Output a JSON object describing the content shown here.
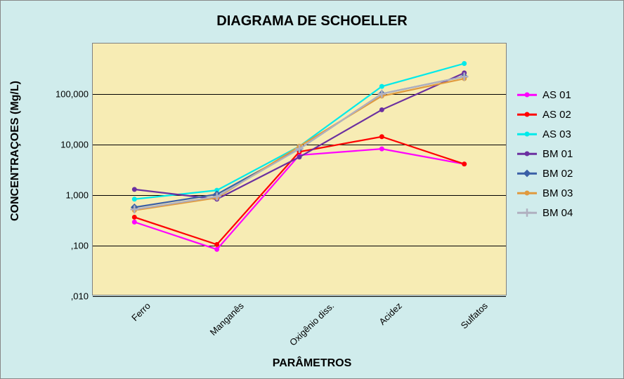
{
  "title": "DIAGRAMA DE SCHOELLER",
  "ylabel": "CONCENTRAÇOES (Mg/L)",
  "xlabel": "PARÂMETROS",
  "outer_bg": "#d0ecec",
  "plot_bg": "#f7ecb4",
  "plot_border": "#808080",
  "grid_color": "#000000",
  "chart": {
    "type": "line",
    "yscale": "log",
    "ylim_log10": [
      -2,
      3
    ],
    "yticks": [
      {
        "value": 0.01,
        "label": ",010"
      },
      {
        "value": 0.1,
        "label": ",100"
      },
      {
        "value": 1,
        "label": "1,000"
      },
      {
        "value": 10,
        "label": "10,000"
      },
      {
        "value": 100,
        "label": "100,000"
      }
    ],
    "categories": [
      "Ferro",
      "Manganês",
      "Oxigênio diss.",
      "Acidez",
      "Sulfatos"
    ],
    "series": [
      {
        "name": "AS 01",
        "color": "#ff00ff",
        "marker": "circle",
        "values": [
          0.28,
          0.08,
          6.0,
          8.0,
          4.0
        ]
      },
      {
        "name": "AS 02",
        "color": "#ff0000",
        "marker": "circle",
        "values": [
          0.35,
          0.1,
          7.0,
          14.0,
          4.0
        ]
      },
      {
        "name": "AS 03",
        "color": "#00eaea",
        "marker": "circle",
        "values": [
          0.8,
          1.2,
          9.0,
          140.0,
          400.0
        ]
      },
      {
        "name": "BM 01",
        "color": "#6b2fa0",
        "marker": "circle",
        "values": [
          1.25,
          0.8,
          5.5,
          48.0,
          260.0
        ]
      },
      {
        "name": "BM 02",
        "color": "#3a5fa6",
        "marker": "diamond",
        "values": [
          0.55,
          1.0,
          8.0,
          100.0,
          220.0
        ]
      },
      {
        "name": "BM 03",
        "color": "#e09a3e",
        "marker": "circle",
        "values": [
          0.48,
          0.85,
          9.0,
          90.0,
          200.0
        ]
      },
      {
        "name": "BM 04",
        "color": "#b0b0c0",
        "marker": "plus",
        "values": [
          0.5,
          0.9,
          8.0,
          100.0,
          220.0
        ]
      }
    ],
    "line_width": 2.2,
    "marker_size": 7,
    "title_fontsize": 20,
    "label_fontsize": 16,
    "tick_fontsize": 13,
    "legend_fontsize": 15
  }
}
